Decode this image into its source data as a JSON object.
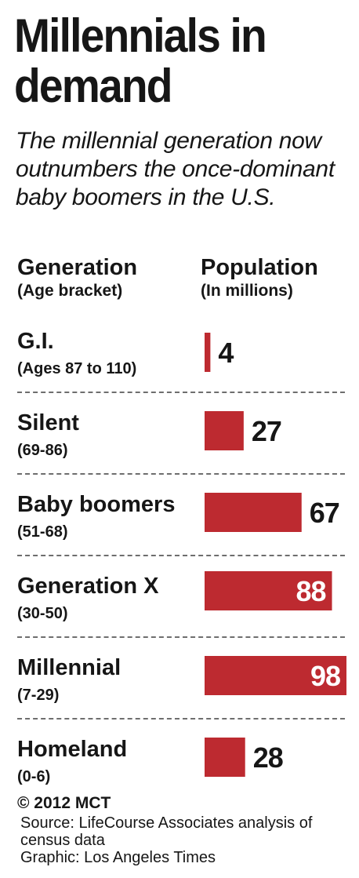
{
  "title": "Millennials in demand",
  "subtitle": "The millennial generation now outnumbers the once-dominant baby boomers in the U.S.",
  "headers": {
    "generation": "Generation",
    "generation_sub": "(Age bracket)",
    "population": "Population",
    "population_sub": "(In millions)"
  },
  "chart_data": {
    "type": "bar",
    "orientation": "horizontal",
    "categories": [
      "G.I.",
      "Silent",
      "Baby boomers",
      "Generation X",
      "Millennial",
      "Homeland"
    ],
    "category_sublabels": [
      "(Ages 87 to 110)",
      "(69-86)",
      "(51-68)",
      "(30-50)",
      "(7-29)",
      "(0-6)"
    ],
    "values": [
      4,
      27,
      67,
      88,
      98,
      28
    ],
    "value_labels": [
      "4",
      "27",
      "67",
      "88",
      "98",
      "28"
    ],
    "bar_color": "#bd2a30",
    "xlim": [
      0,
      98
    ],
    "grid": false,
    "unit": "In millions"
  },
  "footer": {
    "credit": "© 2012 MCT",
    "source": "Source: LifeCourse Associates analysis of census data",
    "graphic": "Graphic: Los Angeles Times"
  }
}
